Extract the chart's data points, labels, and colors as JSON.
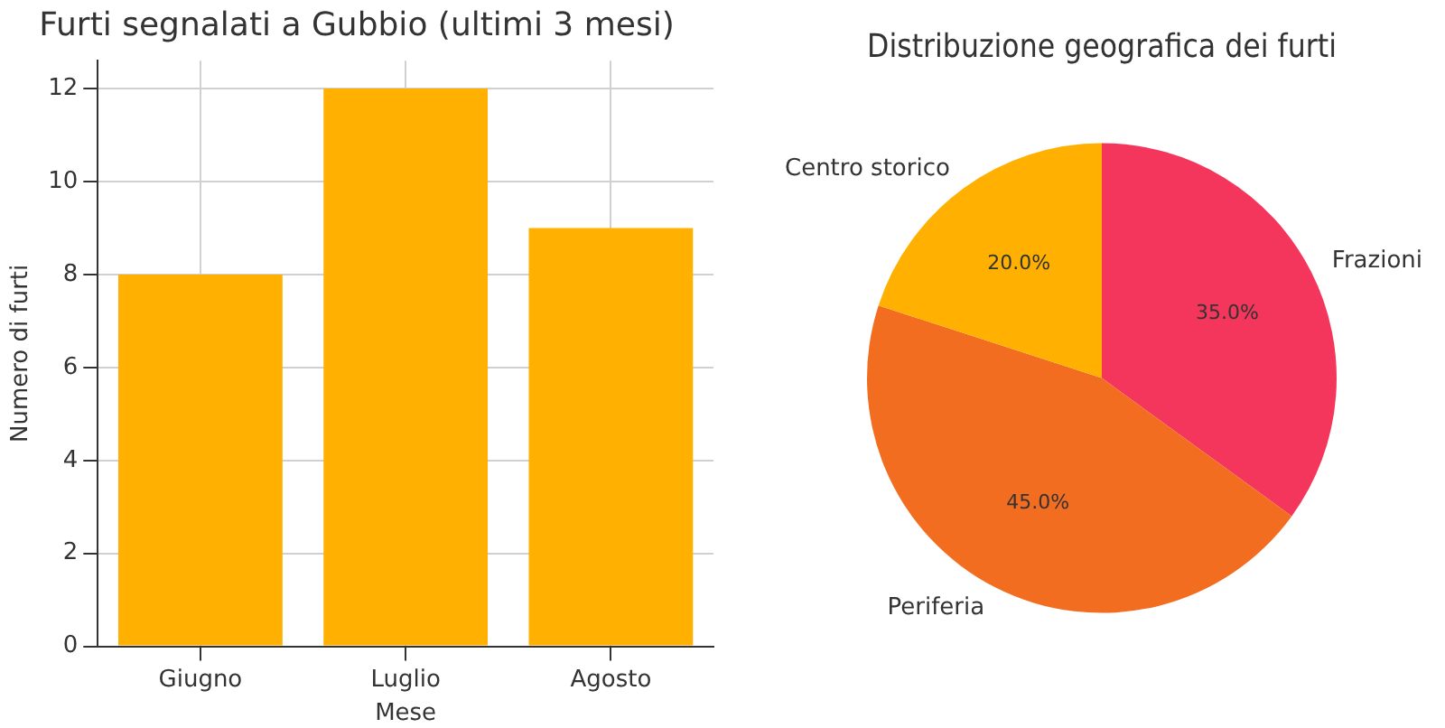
{
  "chart_data": [
    {
      "type": "bar",
      "title": "Furti segnalati a Gubbio (ultimi 3 mesi)",
      "xlabel": "Mese",
      "ylabel": "Numero di furti",
      "categories": [
        "Giugno",
        "Luglio",
        "Agosto"
      ],
      "values": [
        8,
        12,
        9
      ],
      "color": "#ffb000",
      "ylim": [
        0,
        12.6
      ],
      "yticks": [
        0,
        2,
        4,
        6,
        8,
        10,
        12
      ],
      "grid": true,
      "legend": false
    },
    {
      "type": "pie",
      "title": "Distribuzione geografica dei furti",
      "categories": [
        "Frazioni",
        "Periferia",
        "Centro storico"
      ],
      "values": [
        35,
        45,
        20
      ],
      "colors": [
        "#f5365c",
        "#f36d21",
        "#ffb000"
      ],
      "value_labels": [
        "35.0%",
        "45.0%",
        "20.0%"
      ],
      "legend": false
    }
  ]
}
